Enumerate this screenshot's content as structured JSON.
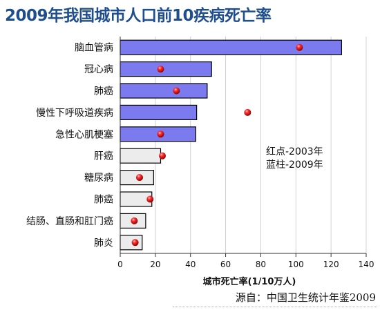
{
  "chart_data": {
    "type": "bar",
    "orientation": "horizontal",
    "title": "2009年我国城市人口前10疾病死亡率",
    "xlabel": "城市死亡率(1/10万人)",
    "xlim": [
      0,
      140
    ],
    "xticks": [
      0,
      20,
      40,
      60,
      80,
      100,
      120,
      140
    ],
    "grid": true,
    "categories": [
      "脑血管病",
      "冠心病",
      "肺癌",
      "慢性下呼吸道疾病",
      "急性心肌梗塞",
      "肝癌",
      "糖尿病",
      "肺癌",
      "结肠、直肠和肛门癌",
      "肺炎"
    ],
    "series": [
      {
        "name": "蓝柱-2009年",
        "type": "bar",
        "values": [
          126,
          52,
          49.5,
          43.5,
          43,
          23,
          19,
          18,
          14.5,
          12.5
        ],
        "color": "#7b7bef",
        "highlight_color": "#ececec"
      },
      {
        "name": "红点-2003年",
        "type": "scatter",
        "values": [
          102,
          23,
          32,
          72.5,
          23,
          24,
          11,
          17,
          8,
          8.5
        ],
        "color": "#e81818"
      }
    ],
    "highlighted_indices": [
      5,
      6,
      7,
      8,
      9
    ],
    "legend_lines": [
      "红点-2003年",
      "蓝柱-2009年"
    ],
    "legend_position": "right-middle",
    "source": "源自：中国卫生统计年鉴2009"
  }
}
